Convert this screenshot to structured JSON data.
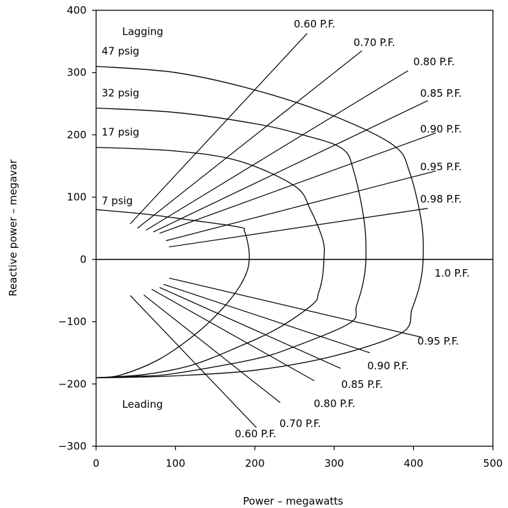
{
  "chart_data": {
    "type": "line",
    "title": "",
    "xlabel": "Power – megawatts",
    "ylabel": "Reactive power – megavar",
    "xlim": [
      0,
      500
    ],
    "ylim": [
      -300,
      400
    ],
    "xticks": [
      "0",
      "100",
      "200",
      "300",
      "400",
      "500"
    ],
    "yticks": [
      "400",
      "300",
      "200",
      "100",
      "0",
      "−100",
      "−200",
      "−300"
    ],
    "grid": false,
    "region_labels": {
      "upper": "Lagging",
      "lower": "Leading"
    },
    "capability_curves": [
      {
        "name": "47  psig",
        "points": [
          [
            0,
            310
          ],
          [
            100,
            300
          ],
          [
            200,
            272
          ],
          [
            300,
            230
          ],
          [
            375,
            183
          ],
          [
            395,
            140
          ],
          [
            410,
            60
          ],
          [
            412,
            0
          ],
          [
            408,
            -40
          ],
          [
            398,
            -80
          ],
          [
            385,
            -118
          ],
          [
            300,
            -155
          ],
          [
            200,
            -178
          ],
          [
            100,
            -187
          ],
          [
            50,
            -189
          ],
          [
            0,
            -190
          ]
        ]
      },
      {
        "name": "32  psig",
        "points": [
          [
            0,
            243
          ],
          [
            100,
            236
          ],
          [
            200,
            218
          ],
          [
            260,
            200
          ],
          [
            310,
            178
          ],
          [
            325,
            140
          ],
          [
            338,
            60
          ],
          [
            340,
            0
          ],
          [
            336,
            -40
          ],
          [
            328,
            -75
          ],
          [
            320,
            -102
          ],
          [
            250,
            -140
          ],
          [
            200,
            -160
          ],
          [
            100,
            -183
          ],
          [
            50,
            -188
          ],
          [
            0,
            -190
          ]
        ]
      },
      {
        "name": "17  psig",
        "points": [
          [
            0,
            180
          ],
          [
            100,
            174
          ],
          [
            180,
            158
          ],
          [
            250,
            118
          ],
          [
            270,
            80
          ],
          [
            286,
            30
          ],
          [
            287,
            0
          ],
          [
            285,
            -30
          ],
          [
            280,
            -55
          ],
          [
            273,
            -72
          ],
          [
            230,
            -110
          ],
          [
            180,
            -140
          ],
          [
            120,
            -170
          ],
          [
            60,
            -185
          ],
          [
            0,
            -190
          ]
        ]
      },
      {
        "name": "7  psig",
        "points": [
          [
            0,
            80
          ],
          [
            60,
            73
          ],
          [
            120,
            63
          ],
          [
            180,
            52
          ],
          [
            187,
            45
          ],
          [
            192,
            20
          ],
          [
            193,
            0
          ],
          [
            190,
            -20
          ],
          [
            180,
            -45
          ],
          [
            162,
            -75
          ],
          [
            130,
            -115
          ],
          [
            80,
            -160
          ],
          [
            30,
            -186
          ],
          [
            0,
            -190
          ]
        ]
      }
    ],
    "pf_lines": [
      {
        "name": "0.60  P.F.",
        "from": [
          43,
          57
        ],
        "to": [
          266,
          363
        ]
      },
      {
        "name": "0.70  P.F.",
        "from": [
          52,
          50
        ],
        "to": [
          335,
          335
        ]
      },
      {
        "name": "0.80  P.F.",
        "from": [
          63,
          47
        ],
        "to": [
          393,
          303
        ]
      },
      {
        "name": "0.85  P.F.",
        "from": [
          72,
          44
        ],
        "to": [
          418,
          255
        ]
      },
      {
        "name": "0.90  P.F.",
        "from": [
          80,
          42
        ],
        "to": [
          428,
          203
        ]
      },
      {
        "name": "0.95  P.F.",
        "from": [
          88,
          30
        ],
        "to": [
          428,
          142
        ]
      },
      {
        "name": "0.98  P.F.",
        "from": [
          92,
          20
        ],
        "to": [
          418,
          82
        ]
      },
      {
        "name": "1.0  P.F.",
        "from": [
          0,
          0
        ],
        "to": [
          500,
          0
        ]
      },
      {
        "name": "0.95  P.F.",
        "from": [
          92,
          -30
        ],
        "to": [
          410,
          -125
        ]
      },
      {
        "name": "0.90  P.F.",
        "from": [
          85,
          -40
        ],
        "to": [
          345,
          -150
        ]
      },
      {
        "name": "0.85  P.F.",
        "from": [
          80,
          -45
        ],
        "to": [
          308,
          -175
        ]
      },
      {
        "name": "0.80  P.F.",
        "from": [
          70,
          -48
        ],
        "to": [
          275,
          -195
        ]
      },
      {
        "name": "0.70  P.F.",
        "from": [
          60,
          -57
        ],
        "to": [
          232,
          -230
        ]
      },
      {
        "name": "0.60  P.F.",
        "from": [
          43,
          -58
        ],
        "to": [
          202,
          -270
        ]
      }
    ]
  }
}
